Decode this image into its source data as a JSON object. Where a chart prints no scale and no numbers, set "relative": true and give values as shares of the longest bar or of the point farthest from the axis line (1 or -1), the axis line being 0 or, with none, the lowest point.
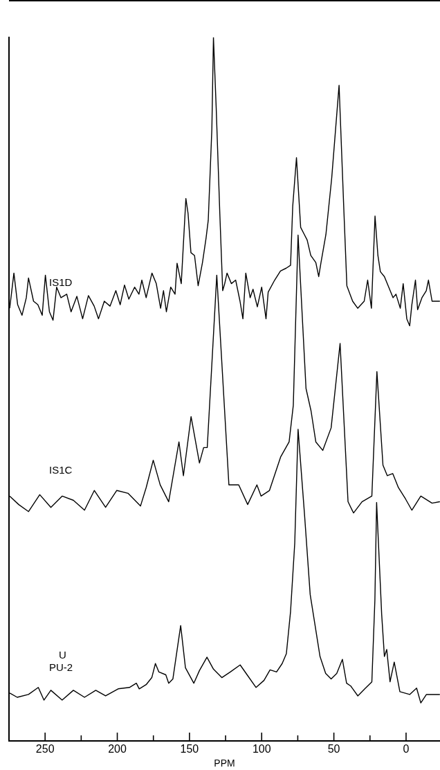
{
  "chart_data": {
    "type": "line",
    "xlabel": "PPM",
    "relative": true,
    "grid": false,
    "legend": false,
    "xlim": [
      275,
      -23.5
    ],
    "xticks": [
      250,
      {
        "value": 225,
        "label": null
      },
      200,
      {
        "value": 175,
        "label": null
      },
      150,
      {
        "value": 125,
        "label": null
      },
      100,
      {
        "value": 75,
        "label": null
      },
      50,
      {
        "value": 25,
        "label": null
      },
      0
    ],
    "annotations": [
      "U"
    ],
    "series": [
      {
        "name": "IS1D",
        "color": "#000000",
        "x": [
          274.5,
          271.6,
          269,
          266,
          263,
          261.5,
          258,
          255,
          252,
          249.8,
          247,
          244.5,
          242,
          239,
          235,
          232,
          228,
          224,
          220,
          216,
          213,
          209,
          205,
          201,
          198,
          195,
          192,
          188,
          185,
          183,
          180,
          176,
          173,
          170,
          168,
          166,
          163,
          160,
          158.6,
          155.7,
          152.5,
          151,
          149,
          146.5,
          144,
          141,
          138.5,
          137,
          134.5,
          133.4,
          131.5,
          129,
          127,
          125.6,
          124,
          121,
          118,
          115,
          113,
          111,
          108,
          106,
          103,
          100,
          97,
          95.5,
          91,
          87,
          83,
          80,
          78.5,
          75.9,
          73,
          70.5,
          68.5,
          66,
          62.5,
          60.5,
          59,
          55.5,
          51.5,
          46.4,
          43,
          41,
          37,
          33.5,
          29,
          26.6,
          24,
          21.5,
          19.5,
          17.8,
          15,
          12,
          9,
          7,
          4,
          2,
          -0.5,
          -2.5,
          -4,
          -6.5,
          -8,
          -11,
          -14,
          -15.5,
          -18,
          -23.4
        ],
        "values": [
          0.615,
          0.665,
          0.62,
          0.605,
          0.63,
          0.658,
          0.625,
          0.62,
          0.605,
          0.662,
          0.61,
          0.598,
          0.645,
          0.63,
          0.635,
          0.61,
          0.632,
          0.6,
          0.633,
          0.618,
          0.6,
          0.625,
          0.618,
          0.64,
          0.62,
          0.648,
          0.628,
          0.645,
          0.635,
          0.655,
          0.63,
          0.665,
          0.65,
          0.615,
          0.64,
          0.61,
          0.645,
          0.635,
          0.679,
          0.65,
          0.771,
          0.75,
          0.694,
          0.69,
          0.647,
          0.68,
          0.715,
          0.74,
          0.87,
          1.0,
          0.9,
          0.75,
          0.64,
          0.65,
          0.665,
          0.65,
          0.655,
          0.625,
          0.6,
          0.665,
          0.63,
          0.642,
          0.617,
          0.645,
          0.6,
          0.638,
          0.655,
          0.668,
          0.672,
          0.676,
          0.76,
          0.829,
          0.73,
          0.72,
          0.712,
          0.69,
          0.68,
          0.66,
          0.679,
          0.72,
          0.8,
          0.932,
          0.75,
          0.647,
          0.625,
          0.615,
          0.625,
          0.655,
          0.615,
          0.746,
          0.69,
          0.667,
          0.66,
          0.645,
          0.63,
          0.635,
          0.615,
          0.65,
          0.6,
          0.59,
          0.62,
          0.655,
          0.613,
          0.63,
          0.64,
          0.655,
          0.625,
          0.625
        ]
      },
      {
        "name": "IS1C",
        "color": "#000000",
        "x": [
          274.5,
          268.3,
          261.5,
          253.7,
          246.0,
          238.2,
          230.4,
          222.7,
          215.9,
          208.1,
          200.4,
          192.6,
          183.9,
          180.0,
          175.1,
          170.3,
          164.4,
          157.3,
          154.2,
          148.9,
          143.1,
          140.2,
          137.7,
          131.1,
          122.7,
          115.9,
          109.7,
          103.3,
          100.4,
          94.6,
          86.8,
          81.0,
          78.1,
          74.8,
          69.3,
          65.8,
          62.5,
          57.7,
          51.9,
          45.7,
          40.2,
          36.4,
          30.5,
          23.7,
          20.2,
          16.0,
          13.0,
          9.2,
          5.3,
          0.4,
          -4.0,
          -10.2,
          -18.0,
          -23.4
        ],
        "values": [
          0.348,
          0.336,
          0.326,
          0.35,
          0.332,
          0.348,
          0.342,
          0.328,
          0.356,
          0.332,
          0.356,
          0.352,
          0.334,
          0.36,
          0.399,
          0.364,
          0.34,
          0.425,
          0.377,
          0.461,
          0.395,
          0.417,
          0.417,
          0.662,
          0.364,
          0.364,
          0.336,
          0.364,
          0.348,
          0.356,
          0.404,
          0.425,
          0.477,
          0.719,
          0.501,
          0.469,
          0.425,
          0.413,
          0.445,
          0.565,
          0.34,
          0.324,
          0.34,
          0.348,
          0.525,
          0.392,
          0.377,
          0.38,
          0.36,
          0.344,
          0.328,
          0.348,
          0.338,
          0.34
        ]
      },
      {
        "name": "PU-2",
        "color": "#000000",
        "x": [
          274.5,
          269.3,
          261.5,
          254.7,
          250.8,
          246.0,
          238.2,
          230.4,
          222.7,
          214.9,
          208.1,
          199.4,
          191.6,
          186.8,
          184.8,
          180.0,
          176.1,
          173.6,
          171.2,
          166.4,
          164.4,
          161.5,
          156.1,
          152.8,
          147.0,
          143.1,
          137.9,
          133.4,
          127.6,
          121.7,
          114.9,
          110.1,
          103.9,
          98.4,
          94.2,
          89.7,
          85.8,
          82.9,
          80.0,
          77.1,
          74.8,
          70.3,
          66.4,
          59.6,
          55.7,
          51.9,
          48.0,
          44.1,
          41.2,
          38.3,
          33.4,
          28.6,
          23.7,
          21.6,
          20.4,
          16.9,
          15.0,
          13.4,
          11.1,
          8.2,
          4.3,
          -2.5,
          -7.3,
          -10.2,
          -14.1,
          -23.4
        ],
        "values": [
          0.068,
          0.062,
          0.066,
          0.076,
          0.058,
          0.072,
          0.058,
          0.072,
          0.062,
          0.072,
          0.064,
          0.074,
          0.076,
          0.082,
          0.074,
          0.08,
          0.09,
          0.11,
          0.098,
          0.094,
          0.082,
          0.088,
          0.164,
          0.104,
          0.082,
          0.1,
          0.119,
          0.102,
          0.09,
          0.098,
          0.108,
          0.094,
          0.076,
          0.086,
          0.101,
          0.098,
          0.11,
          0.124,
          0.184,
          0.281,
          0.443,
          0.321,
          0.208,
          0.12,
          0.096,
          0.088,
          0.096,
          0.116,
          0.082,
          0.078,
          0.064,
          0.074,
          0.084,
          0.2,
          0.339,
          0.18,
          0.12,
          0.13,
          0.084,
          0.112,
          0.07,
          0.066,
          0.075,
          0.054,
          0.066,
          0.066
        ]
      }
    ]
  }
}
